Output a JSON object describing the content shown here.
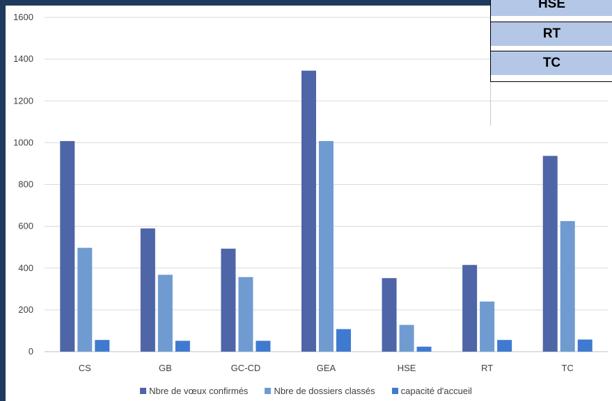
{
  "chart_data": {
    "type": "bar",
    "title": "",
    "xlabel": "",
    "ylabel": "",
    "categories": [
      "CS",
      "GB",
      "GC-CD",
      "GEA",
      "HSE",
      "RT",
      "TC"
    ],
    "series": [
      {
        "name": "Nbre de vœux confirmés",
        "color": "#4e65a8",
        "values": [
          1008,
          590,
          493,
          1345,
          352,
          415,
          937
        ]
      },
      {
        "name": "Nbre de dossiers classés",
        "color": "#6f9bd1",
        "values": [
          497,
          368,
          357,
          1008,
          128,
          240,
          625
        ]
      },
      {
        "name": "capacité d'accueil",
        "color": "#3f7ad0",
        "values": [
          56,
          52,
          52,
          108,
          24,
          56,
          58
        ]
      }
    ],
    "y_ticks": [
      "0",
      "200",
      "400",
      "600",
      "800",
      "1000",
      "1200",
      "1400",
      "1600"
    ],
    "ylim": [
      0,
      1600
    ],
    "grid": true,
    "legend_position": "bottom"
  },
  "legend": {
    "item_1": "Nbre de vœux confirmés",
    "item_2": "Nbre de dossiers classés",
    "item_3": "capacité d'accueil"
  },
  "overlay_table": {
    "rows": [
      "HSE",
      "RT",
      "TC"
    ]
  }
}
